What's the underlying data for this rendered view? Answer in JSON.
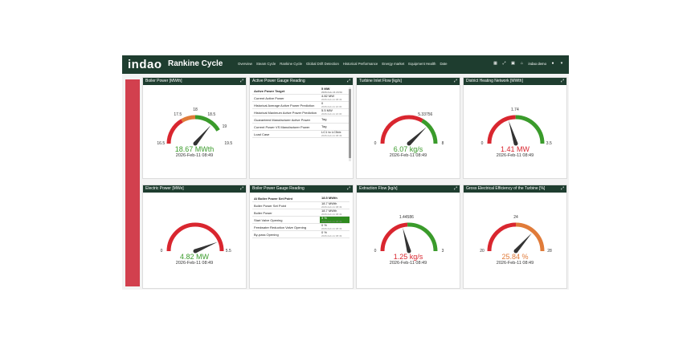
{
  "app": {
    "logo": "indao",
    "title": "Rankine Cycle",
    "nav": [
      "Overview",
      "Steam Cycle",
      "Rankine Cycle",
      "Global Drift Detection",
      "Historical Performance",
      "Energy market",
      "Equipment Health",
      "Date"
    ],
    "user": "indao demo"
  },
  "gauges": [
    {
      "title": "Boiler Power [MWth]",
      "value_text": "18.67 MWth",
      "value_color": "#3a9b2b",
      "date": "2026-Feb-11 08:49",
      "ticks": [
        "16.5",
        "17.5",
        "18",
        "18.5",
        "19",
        "19.5"
      ],
      "min": 16.5,
      "max": 19.5,
      "value": 18.67,
      "bands": [
        {
          "from": 16.5,
          "to": 17.5,
          "color": "#d9262f"
        },
        {
          "from": 17.5,
          "to": 18,
          "color": "#e07b39"
        },
        {
          "from": 18,
          "to": 19,
          "color": "#3a9b2b"
        }
      ]
    },
    {
      "title": "Turbine Inlet Flow [kg/s]",
      "value_text": "6.07 kg/s",
      "value_color": "#3a9b2b",
      "date": "2026-Feb-11 08:49",
      "ticks": [
        "0",
        "5.33756",
        "8"
      ],
      "min": 0,
      "max": 8,
      "value": 6.07,
      "bands": [
        {
          "from": 0,
          "to": 5.33756,
          "color": "#d9262f"
        },
        {
          "from": 5.33756,
          "to": 8,
          "color": "#3a9b2b"
        }
      ]
    },
    {
      "title": "District Heating Network [MWth]",
      "value_text": "1.41 MW",
      "value_color": "#d9262f",
      "date": "2026-Feb-11 08:49",
      "ticks": [
        "0",
        "1.74",
        "3.5"
      ],
      "min": 0,
      "max": 3.5,
      "value": 1.41,
      "bands": [
        {
          "from": 0,
          "to": 1.74,
          "color": "#d9262f"
        },
        {
          "from": 1.74,
          "to": 3.5,
          "color": "#3a9b2b"
        }
      ]
    },
    {
      "title": "Electric Power [MWe]",
      "value_text": "4.82 MW",
      "value_color": "#3a9b2b",
      "date": "2026-Feb-11 08:49",
      "ticks": [
        "0",
        "5.5"
      ],
      "min": 0,
      "max": 5.5,
      "value": 4.82,
      "bands": [
        {
          "from": 0,
          "to": 5.5,
          "color": "#d9262f"
        }
      ]
    },
    {
      "title": "Extraction Flow [kg/s]",
      "value_text": "1.25 kg/s",
      "value_color": "#d9262f",
      "date": "2026-Feb-11 08:49",
      "ticks": [
        "0",
        "1.44586",
        "3"
      ],
      "min": 0,
      "max": 3,
      "value": 1.25,
      "bands": [
        {
          "from": 0,
          "to": 1.44586,
          "color": "#d9262f"
        },
        {
          "from": 1.44586,
          "to": 3,
          "color": "#3a9b2b"
        }
      ]
    },
    {
      "title": "Gross Electrical Efficiency of the Turbine [%]",
      "value_text": "25.84 %",
      "value_color": "#e07b39",
      "date": "2026-Feb-11 08:49",
      "ticks": [
        "20",
        "24",
        "28"
      ],
      "min": 20,
      "max": 28,
      "value": 25.84,
      "bands": [
        {
          "from": 20,
          "to": 24,
          "color": "#d9262f"
        },
        {
          "from": 24,
          "to": 28,
          "color": "#e07b39"
        }
      ]
    }
  ],
  "active_power_table": {
    "title": "Active Power Gauge Reading",
    "rows": [
      {
        "k": "Active Power Target",
        "v": "5 MW",
        "d": "2026-Feb-16 23:59",
        "bold": true
      },
      {
        "k": "Current Active Power",
        "v": "4.82 MW",
        "d": "2026-Feb-11 08:49"
      },
      {
        "k": "Historical Average Active Power Prediction",
        "v": "0",
        "d": "2026-Feb-11 22:30"
      },
      {
        "k": "Historical Maximum Active Power Prediction",
        "v": "5.5 MW",
        "d": "2026-Feb-11 22:30"
      },
      {
        "k": "Guaranteed Manufacturer Active Power",
        "v": "Tag",
        "d": ""
      },
      {
        "k": "Current Power VS Manufacturer Power",
        "v": "Tag",
        "d": ""
      },
      {
        "k": "Load Case",
        "v": "LC1 to LC5dx",
        "d": "2026-Feb-11 08:49"
      }
    ]
  },
  "boiler_power_table": {
    "title": "Boiler Power Gauge Reading",
    "rows": [
      {
        "k": "AI Boiler Power Set Point",
        "v": "18.5 MWth",
        "d": "",
        "bold": true
      },
      {
        "k": "Boiler Power Set Point",
        "v": "18.7 MWth",
        "d": "2026-Feb-11 08:49"
      },
      {
        "k": "Boiler Power",
        "v": "18.7 MWth",
        "d": "2026-Feb-11 08:49"
      },
      {
        "k": "Start Valve Opening",
        "v": "3 %",
        "d": "2026-Feb-11 08:49",
        "green": true
      },
      {
        "k": "Feedwater Reduction Valve Opening",
        "v": "0 %",
        "d": "2026-Feb-11 08:49"
      },
      {
        "k": "By-pass Opening",
        "v": "0 %",
        "d": "2026-Feb-11 08:49"
      }
    ]
  }
}
